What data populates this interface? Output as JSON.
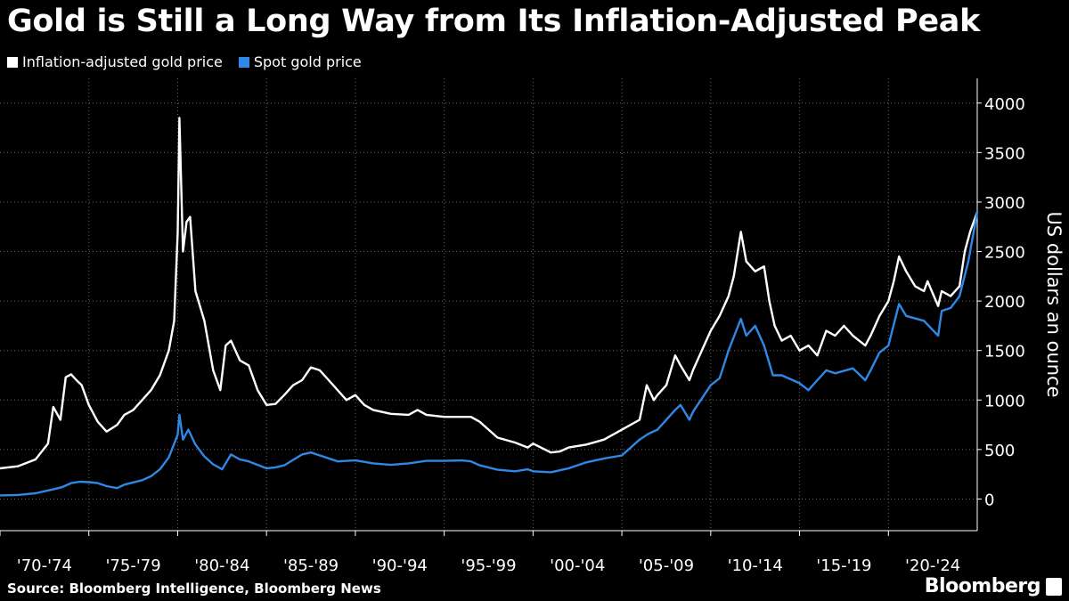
{
  "title": "Gold is Still a Long Way from Its Inflation-Adjusted Peak",
  "source": "Source: Bloomberg Intelligence, Bloomberg News",
  "brand": "Bloomberg",
  "colors": {
    "background": "#000000",
    "inflation": "#ffffff",
    "spot": "#2f87e6",
    "grid": "#6a6a6a"
  },
  "chart_data": {
    "type": "line",
    "title": "Gold is Still a Long Way from Its Inflation-Adjusted Peak",
    "ylabel": "US dollars an ounce",
    "xlabel": "",
    "ylim": [
      -320,
      4250
    ],
    "xlim": [
      1970.0,
      2025.0
    ],
    "yticks": [
      0,
      500,
      1000,
      1500,
      2000,
      2500,
      3000,
      3500,
      4000
    ],
    "grid": true,
    "x_tick_labels": [
      {
        "label": "'70-'74",
        "x": 1970
      },
      {
        "label": "'75-'79",
        "x": 1975
      },
      {
        "label": "'80-'84",
        "x": 1980
      },
      {
        "label": "'85-'89",
        "x": 1985
      },
      {
        "label": "'90-'94",
        "x": 1990
      },
      {
        "label": "'95-'99",
        "x": 1995
      },
      {
        "label": "'00-'04",
        "x": 2000
      },
      {
        "label": "'05-'09",
        "x": 2005
      },
      {
        "label": "'10-'14",
        "x": 2010
      },
      {
        "label": "'15-'19",
        "x": 2015
      },
      {
        "label": "'20-'24",
        "x": 2020
      }
    ],
    "series": [
      {
        "name": "Inflation-adjusted gold price",
        "color": "#ffffff",
        "x": [
          1970.0,
          1971.0,
          1972.0,
          1972.7,
          1973.0,
          1973.4,
          1973.7,
          1974.0,
          1974.3,
          1974.6,
          1975.0,
          1975.5,
          1976.0,
          1976.6,
          1977.0,
          1977.5,
          1978.0,
          1978.5,
          1979.0,
          1979.5,
          1979.8,
          1980.0,
          1980.1,
          1980.3,
          1980.5,
          1980.7,
          1981.0,
          1981.5,
          1982.0,
          1982.4,
          1982.7,
          1983.0,
          1983.5,
          1984.0,
          1984.5,
          1985.0,
          1985.5,
          1986.0,
          1986.5,
          1987.0,
          1987.5,
          1988.0,
          1988.5,
          1989.0,
          1989.5,
          1990.0,
          1990.5,
          1991.0,
          1992.0,
          1993.0,
          1993.5,
          1994.0,
          1995.0,
          1996.0,
          1996.5,
          1997.0,
          1997.5,
          1998.0,
          1999.0,
          1999.7,
          2000.0,
          2001.0,
          2001.5,
          2002.0,
          2003.0,
          2004.0,
          2005.0,
          2006.0,
          2006.4,
          2006.8,
          2007.0,
          2007.5,
          2008.0,
          2008.3,
          2008.8,
          2009.0,
          2009.5,
          2010.0,
          2010.5,
          2011.0,
          2011.3,
          2011.7,
          2012.0,
          2012.5,
          2013.0,
          2013.3,
          2013.6,
          2014.0,
          2014.5,
          2015.0,
          2015.5,
          2016.0,
          2016.5,
          2017.0,
          2017.5,
          2018.0,
          2018.7,
          2019.0,
          2019.5,
          2020.0,
          2020.3,
          2020.6,
          2021.0,
          2021.5,
          2022.0,
          2022.2,
          2022.8,
          2023.0,
          2023.5,
          2024.0,
          2024.3,
          2024.6,
          2025.0
        ],
        "values": [
          310,
          330,
          400,
          560,
          930,
          800,
          1230,
          1260,
          1200,
          1150,
          950,
          780,
          680,
          750,
          850,
          900,
          1000,
          1100,
          1250,
          1500,
          1800,
          2700,
          3850,
          2500,
          2800,
          2850,
          2100,
          1800,
          1300,
          1100,
          1550,
          1600,
          1400,
          1350,
          1100,
          950,
          960,
          1050,
          1150,
          1200,
          1330,
          1300,
          1200,
          1100,
          1000,
          1050,
          950,
          900,
          860,
          850,
          900,
          850,
          830,
          830,
          830,
          780,
          700,
          620,
          570,
          520,
          560,
          470,
          480,
          520,
          550,
          600,
          700,
          800,
          1150,
          1000,
          1050,
          1150,
          1450,
          1350,
          1200,
          1300,
          1500,
          1700,
          1850,
          2050,
          2250,
          2700,
          2400,
          2300,
          2350,
          2000,
          1750,
          1600,
          1650,
          1500,
          1550,
          1450,
          1700,
          1650,
          1750,
          1650,
          1550,
          1650,
          1850,
          2000,
          2200,
          2450,
          2300,
          2150,
          2100,
          2200,
          1950,
          2100,
          2050,
          2150,
          2500,
          2700,
          2900
        ]
      },
      {
        "name": "Spot gold price",
        "color": "#2f87e6",
        "x": [
          1970.0,
          1971.0,
          1972.0,
          1973.0,
          1973.5,
          1974.0,
          1974.5,
          1975.0,
          1975.5,
          1976.0,
          1976.6,
          1977.0,
          1978.0,
          1978.5,
          1979.0,
          1979.5,
          1980.0,
          1980.1,
          1980.3,
          1980.6,
          1981.0,
          1981.5,
          1982.0,
          1982.5,
          1983.0,
          1983.5,
          1984.0,
          1985.0,
          1985.5,
          1986.0,
          1987.0,
          1987.5,
          1988.0,
          1989.0,
          1990.0,
          1991.0,
          1992.0,
          1993.0,
          1994.0,
          1995.0,
          1996.0,
          1996.5,
          1997.0,
          1998.0,
          1999.0,
          1999.7,
          2000.0,
          2001.0,
          2002.0,
          2003.0,
          2004.0,
          2005.0,
          2006.0,
          2006.5,
          2007.0,
          2008.0,
          2008.3,
          2008.8,
          2009.0,
          2010.0,
          2010.5,
          2011.0,
          2011.7,
          2012.0,
          2012.5,
          2013.0,
          2013.5,
          2014.0,
          2015.0,
          2015.5,
          2016.0,
          2016.5,
          2017.0,
          2018.0,
          2018.7,
          2019.0,
          2019.5,
          2020.0,
          2020.6,
          2021.0,
          2022.0,
          2022.8,
          2023.0,
          2023.5,
          2024.0,
          2024.5,
          2025.0
        ],
        "values": [
          36,
          41,
          58,
          97,
          120,
          160,
          175,
          170,
          160,
          130,
          110,
          145,
          190,
          230,
          300,
          420,
          650,
          850,
          600,
          700,
          550,
          430,
          350,
          300,
          450,
          400,
          380,
          310,
          320,
          340,
          450,
          470,
          440,
          380,
          390,
          360,
          345,
          360,
          385,
          385,
          390,
          380,
          340,
          295,
          280,
          300,
          280,
          270,
          310,
          370,
          410,
          440,
          600,
          660,
          700,
          900,
          950,
          800,
          880,
          1150,
          1220,
          1500,
          1820,
          1650,
          1750,
          1550,
          1250,
          1250,
          1170,
          1100,
          1200,
          1300,
          1270,
          1320,
          1200,
          1300,
          1480,
          1550,
          1970,
          1850,
          1800,
          1650,
          1900,
          1930,
          2050,
          2400,
          2900
        ]
      }
    ]
  }
}
